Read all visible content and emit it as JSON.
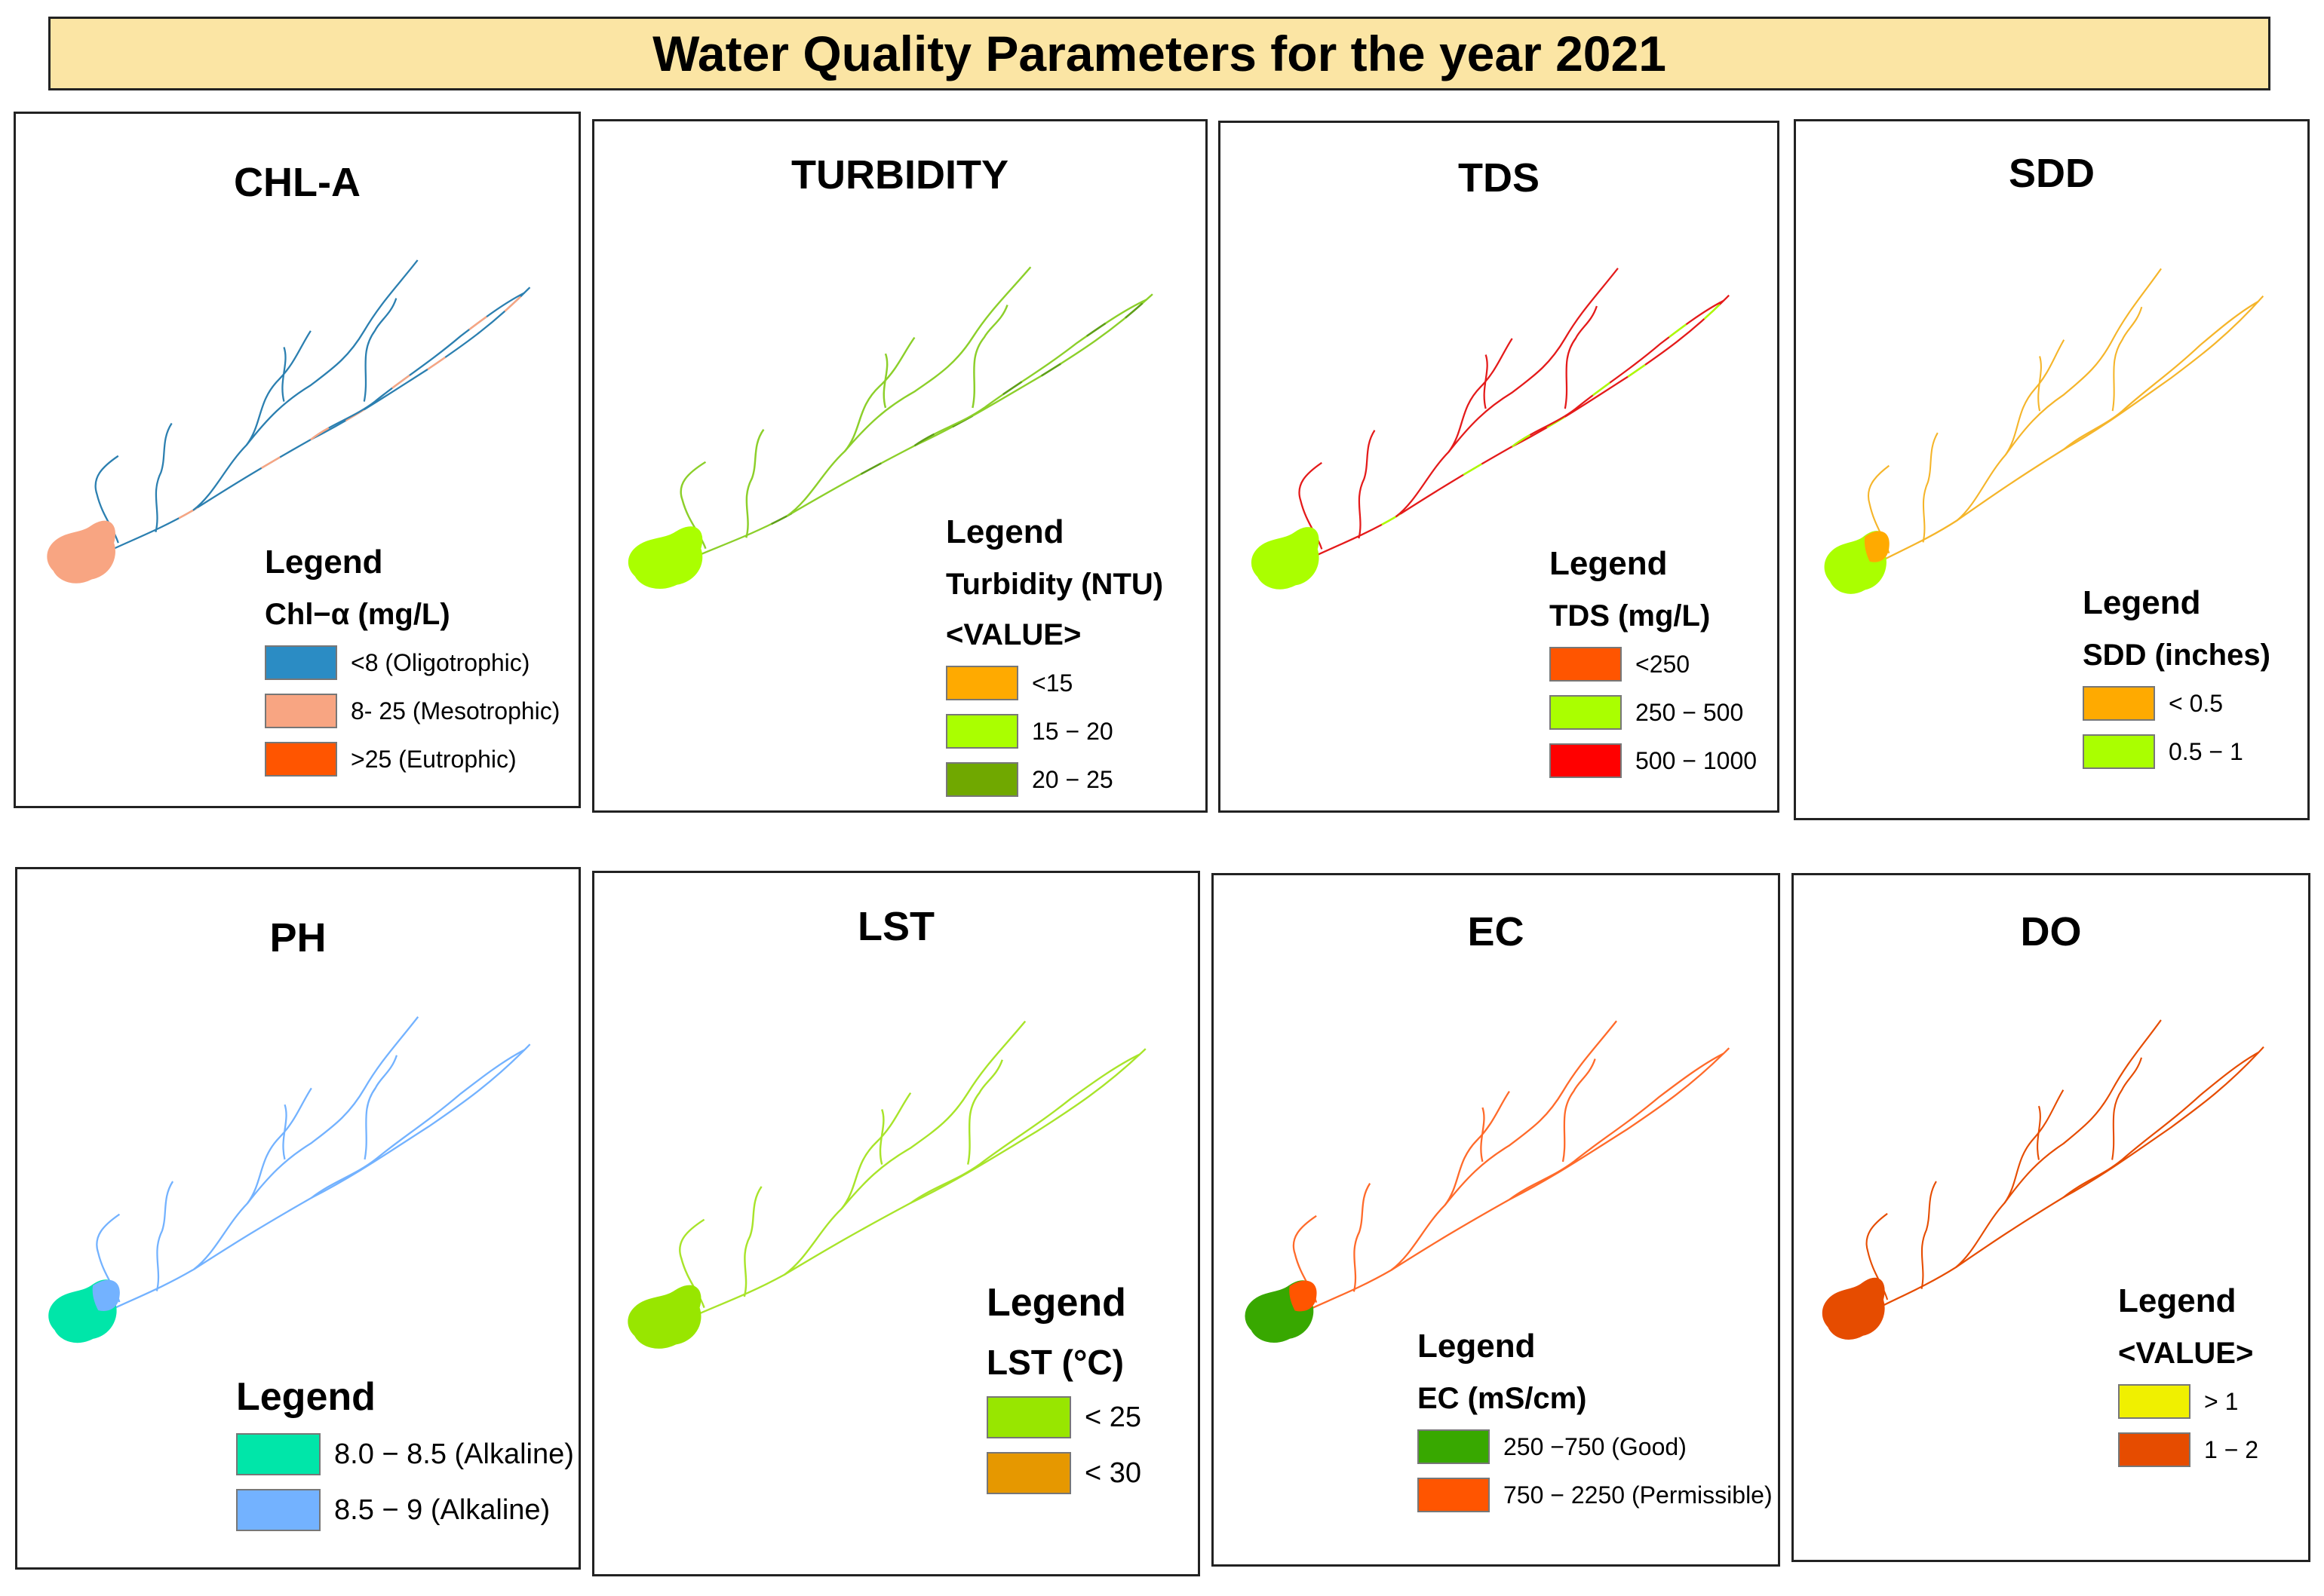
{
  "title": "Water Quality Parameters for the year 2021",
  "panels": [
    {
      "id": "chla",
      "title": "CHL-A",
      "legend_title": "Legend",
      "subtitles": [
        "Chl−α (mg/L)"
      ],
      "items": [
        {
          "label": "<8 (Oligotrophic)",
          "color": "#2b8cc4"
        },
        {
          "label": "8- 25 (Mesotrophic)",
          "color": "#f8a582"
        },
        {
          "label": ">25 (Eutrophic)",
          "color": "#ff5500"
        }
      ],
      "river_color": "#2b7fb0",
      "lake_color": "#f8a582",
      "accent_color": "#f8a582"
    },
    {
      "id": "turbidity",
      "title": "TURBIDITY",
      "legend_title": "Legend",
      "subtitles": [
        "Turbidity (NTU)",
        "<VALUE>"
      ],
      "items": [
        {
          "label": "<15",
          "color": "#ffaa00"
        },
        {
          "label": "15 − 20",
          "color": "#aaff00"
        },
        {
          "label": "20 − 25",
          "color": "#70a800"
        }
      ],
      "river_color": "#8ccf2a",
      "lake_color": "#aaff00",
      "accent_color": "#5e9e1a"
    },
    {
      "id": "tds",
      "title": "TDS",
      "legend_title": "Legend",
      "subtitles": [
        "TDS (mg/L)"
      ],
      "items": [
        {
          "label": "<250",
          "color": "#ff5500"
        },
        {
          "label": "250 − 500",
          "color": "#aaff00"
        },
        {
          "label": "500 − 1000",
          "color": "#ff0000"
        }
      ],
      "river_color": "#e41a1a",
      "lake_color": "#aaff00",
      "accent_color": "#aaff00"
    },
    {
      "id": "sdd",
      "title": "SDD",
      "legend_title": "Legend",
      "subtitles": [
        "SDD (inches)"
      ],
      "items": [
        {
          "label": "< 0.5",
          "color": "#ffaa00"
        },
        {
          "label": "0.5 − 1",
          "color": "#aaff00"
        }
      ],
      "river_color": "#f5b52a",
      "lake_color": "#aaff00",
      "accent_color": "#ffaa00"
    },
    {
      "id": "ph",
      "title": "PH",
      "legend_title": "Legend",
      "subtitles": [],
      "items": [
        {
          "label": "8.0 − 8.5 (Alkaline)",
          "color": "#00e6a9"
        },
        {
          "label": "8.5 − 9 (Alkaline)",
          "color": "#73b2ff"
        }
      ],
      "river_color": "#73b2ff",
      "lake_color": "#00e6a9",
      "accent_color": "#73b2ff"
    },
    {
      "id": "lst",
      "title": "LST",
      "legend_title": "Legend",
      "subtitles": [
        "LST (°C)"
      ],
      "items": [
        {
          "label": "< 25",
          "color": "#98e600"
        },
        {
          "label": "< 30",
          "color": "#e69800"
        }
      ],
      "river_color": "#a8e42a",
      "lake_color": "#98e600",
      "accent_color": "#e69800"
    },
    {
      "id": "ec",
      "title": "EC",
      "legend_title": "Legend",
      "subtitles": [
        "EC (mS/cm)"
      ],
      "items": [
        {
          "label": "250 −750 (Good)",
          "color": "#38a800"
        },
        {
          "label": "750 − 2250 (Permissible)",
          "color": "#ff5500"
        }
      ],
      "river_color": "#ff6a2a",
      "lake_color": "#38a800",
      "accent_color": "#ff5500"
    },
    {
      "id": "do",
      "title": "DO",
      "legend_title": "Legend",
      "subtitles": [
        "<VALUE>"
      ],
      "items": [
        {
          "label": "> 1",
          "color": "#f0f000"
        },
        {
          "label": "1 − 2",
          "color": "#e64c00"
        }
      ],
      "river_color": "#e64c00",
      "lake_color": "#e64c00",
      "accent_color": "#e64c00"
    }
  ]
}
